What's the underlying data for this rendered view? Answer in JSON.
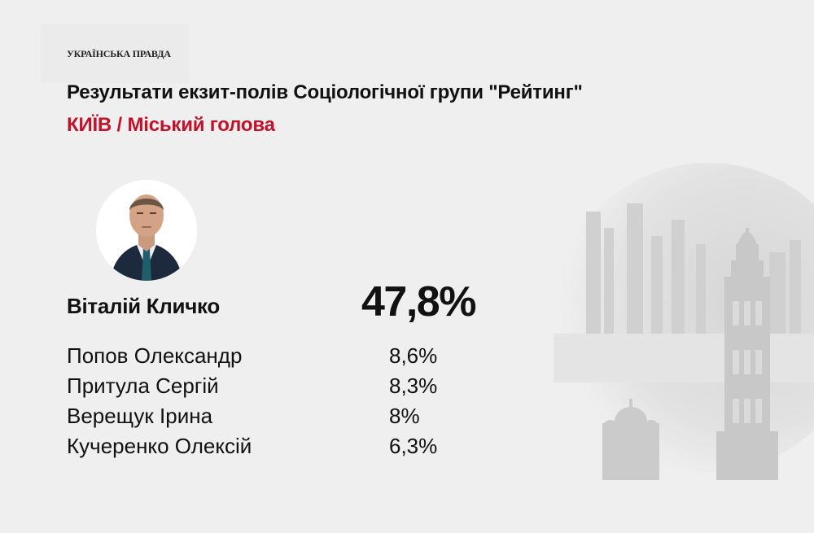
{
  "brand": {
    "logo_text": "УКРАЇНСЬКА ПРАВДА"
  },
  "header": {
    "title": "Результати екзит-полів Соціологічної групи \"Рейтинг\"",
    "subtitle": "КИЇВ / Міський голова"
  },
  "leader": {
    "name": "Віталій Кличко",
    "value": "47,8%",
    "photo": "candidate-portrait"
  },
  "candidates": [
    {
      "name": "Попов Олександр",
      "value": "8,6%"
    },
    {
      "name": "Притула Сергій",
      "value": "8,3%"
    },
    {
      "name": "Верещук Ірина",
      "value": "8%"
    },
    {
      "name": "Кучеренко Олексій",
      "value": "6,3%"
    }
  ],
  "colors": {
    "background": "#efefef",
    "accent": "#c3112a",
    "text": "#111111"
  },
  "background_image": "kyiv-city-skyline"
}
